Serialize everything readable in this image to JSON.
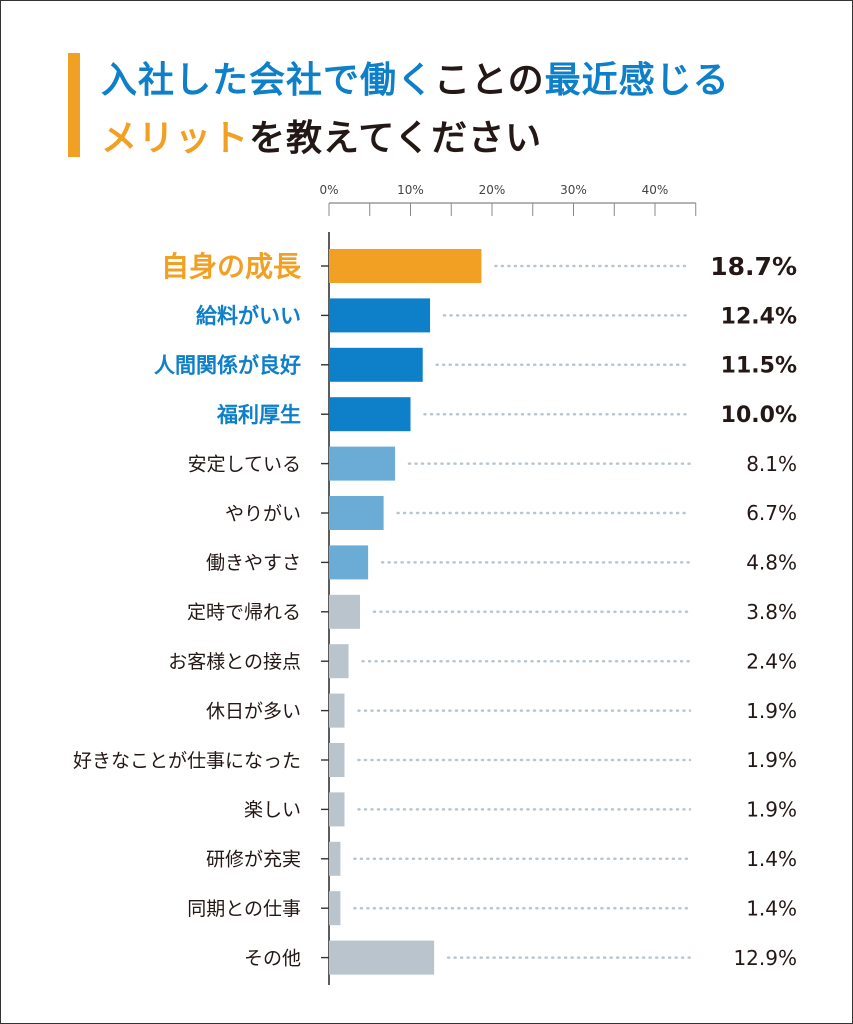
{
  "title": {
    "line1": [
      {
        "text": "入社した会社で働く",
        "color": "#0e7fc9"
      },
      {
        "text": "ことの",
        "color": "#231815"
      },
      {
        "text": "最近感じる",
        "color": "#0e7fc9"
      }
    ],
    "line2": [
      {
        "text": "メリット",
        "color": "#f2a023"
      },
      {
        "text": "を教えてください",
        "color": "#231815"
      }
    ]
  },
  "colors": {
    "accent_orange": "#f2a023",
    "accent_blue": "#0e7fc9",
    "light_blue": "#6aacd6",
    "gray": "#b9c4cd",
    "text_dark": "#231815",
    "dots": "#b8c6d0"
  },
  "chart_data": {
    "type": "bar",
    "orientation": "horizontal",
    "xlim": [
      0,
      45
    ],
    "xticks": [
      0,
      10,
      20,
      30,
      40
    ],
    "xtick_labels": [
      "0%",
      "10%",
      "20%",
      "30%",
      "40%"
    ],
    "grid": false,
    "categories": [
      "自身の成長",
      "給料がいい",
      "人間関係が良好",
      "福利厚生",
      "安定している",
      "やりがい",
      "働きやすさ",
      "定時で帰れる",
      "お客様との接点",
      "休日が多い",
      "好きなことが仕事になった",
      "楽しい",
      "研修が充実",
      "同期との仕事",
      "その他"
    ],
    "values": [
      18.7,
      12.4,
      11.5,
      10.0,
      8.1,
      6.7,
      4.8,
      3.8,
      2.4,
      1.9,
      1.9,
      1.9,
      1.4,
      1.4,
      12.9
    ],
    "value_labels": [
      "18.7%",
      "12.4%",
      "11.5%",
      "10.0%",
      "8.1%",
      "6.7%",
      "4.8%",
      "3.8%",
      "2.4%",
      "1.9%",
      "1.9%",
      "1.9%",
      "1.4%",
      "1.4%",
      "12.9%"
    ],
    "tiers": [
      "top",
      "high",
      "high",
      "high",
      "mid",
      "mid",
      "mid",
      "low",
      "low",
      "low",
      "low",
      "low",
      "low",
      "low",
      "low"
    ]
  }
}
